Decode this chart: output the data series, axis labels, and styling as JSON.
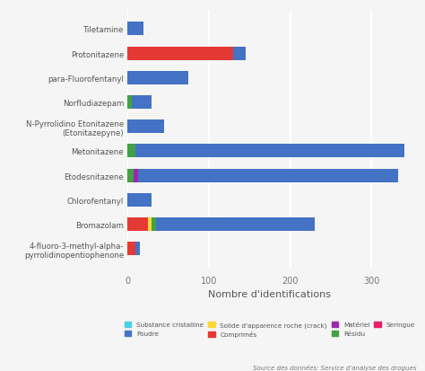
{
  "categories": [
    "4-fluoro-3-methyl-alpha-\npyrrolidinopentiophenone",
    "Bromazolam",
    "Chlorofentanyl",
    "Etodesnitazene",
    "Metonitazene",
    "N-Pyrrolidino Etonitazene\n(Etonitazepyne)",
    "Norfludiazepam",
    "para-Fluorofentanyl",
    "Protonitazene",
    "Tiletamine"
  ],
  "series": {
    "Substance cristalline": [
      0,
      0,
      0,
      0,
      0,
      0,
      0,
      0,
      0,
      0
    ],
    "Poudre": [
      5,
      195,
      30,
      320,
      330,
      45,
      25,
      75,
      15,
      20
    ],
    "Solide d'apparence roche (crack)": [
      0,
      5,
      0,
      0,
      0,
      0,
      0,
      0,
      0,
      0
    ],
    "Comprimés": [
      10,
      25,
      0,
      0,
      0,
      0,
      0,
      0,
      130,
      0
    ],
    "Matériel": [
      0,
      0,
      0,
      5,
      0,
      0,
      0,
      0,
      0,
      0
    ],
    "Résidu": [
      0,
      5,
      0,
      8,
      10,
      0,
      5,
      0,
      0,
      0
    ],
    "Seringue": [
      0,
      0,
      0,
      0,
      0,
      0,
      0,
      0,
      0,
      0
    ]
  },
  "colors": {
    "Substance cristalline": "#4dd0e1",
    "Poudre": "#4472c4",
    "Solide d'apparence roche (crack)": "#fdd835",
    "Comprimés": "#e53935",
    "Matériel": "#9c27b0",
    "Résidu": "#43a047",
    "Seringue": "#e91e63"
  },
  "xlabel": "Nombre d'identifications",
  "source": "Source des données: Service d'analyse des drogues",
  "background_color": "#f5f5f5",
  "grid_color": "#ffffff",
  "xlim": [
    0,
    350
  ],
  "bar_order": [
    "Comprimés",
    "Solide d'apparence roche (crack)",
    "Résidu",
    "Matériel",
    "Seringue",
    "Substance cristalline",
    "Poudre"
  ],
  "legend_order": [
    "Substance cristalline",
    "Poudre",
    "Solide d'apparence roche (crack)",
    "Comprimés",
    "Matériel",
    "Résidu",
    "Seringue"
  ]
}
